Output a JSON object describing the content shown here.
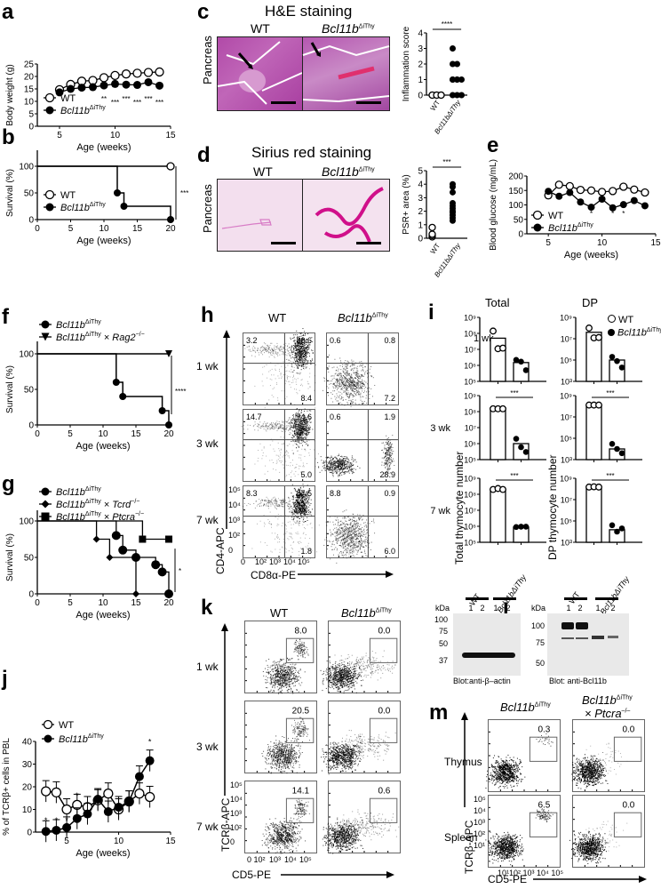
{
  "panels": {
    "a": {
      "label": "a"
    },
    "b": {
      "label": "b"
    },
    "c": {
      "label": "c",
      "title": "H&E staining",
      "col_wt": "WT",
      "col_ko": "Bcl11b",
      "col_ko_sup": "ΔiThy",
      "row_label": "Pancreas"
    },
    "d": {
      "label": "d",
      "title": "Sirius red staining",
      "col_wt": "WT",
      "col_ko": "Bcl11b",
      "col_ko_sup": "ΔiThy",
      "row_label": "Pancreas"
    },
    "e": {
      "label": "e"
    },
    "f": {
      "label": "f"
    },
    "g": {
      "label": "g"
    },
    "h": {
      "label": "h",
      "col_wt": "WT",
      "col_ko": "Bcl11b",
      "col_ko_sup": "ΔiThy",
      "rows": [
        "1 wk",
        "3 wk",
        "7 wk"
      ],
      "ylabel": "CD4-APC",
      "xlabel": "CD8α-PE",
      "quadrants": [
        {
          "wt": [
            "3.2",
            "80.6",
            "8.4"
          ],
          "ko": [
            "0.6",
            "0.8",
            "7.2"
          ]
        },
        {
          "wt": [
            "14.7",
            "74.6",
            "5.0"
          ],
          "ko": [
            "0.6",
            "1.9",
            "28.9"
          ]
        },
        {
          "wt": [
            "8.3",
            "87.5",
            "1.8"
          ],
          "ko": [
            "8.8",
            "0.9",
            "6.0"
          ]
        }
      ],
      "yticks": [
        "0",
        "10²",
        "10³",
        "10⁴",
        "10⁵"
      ],
      "xticks": [
        "0",
        "10²",
        "10³",
        "10⁴",
        "10⁵"
      ]
    },
    "i": {
      "label": "i",
      "col_total": "Total",
      "col_dp": "DP",
      "ylabel_total": "Total thymocyte number",
      "ylabel_dp": "DP thymocyte number",
      "rows": [
        "1 wk",
        "3 wk",
        "7 wk"
      ],
      "legend_wt": "WT",
      "legend_ko": "Bcl11b",
      "legend_ko_sup": "ΔiThy",
      "sig": "***",
      "total_ticks": [
        "10⁹",
        "10⁸",
        "10⁷",
        "10⁶",
        "10⁵"
      ],
      "dp_ticks": [
        "10⁹",
        "10⁷",
        "10⁵",
        "10³"
      ]
    },
    "j": {
      "label": "j"
    },
    "k": {
      "label": "k",
      "col_wt": "WT",
      "col_ko": "Bcl11b",
      "col_ko_sup": "ΔiThy",
      "rows": [
        "1 wk",
        "3 wk",
        "7 wk"
      ],
      "ylabel": "TCRβ-APC",
      "xlabel": "CD5-PE",
      "gates": [
        {
          "wt": "8.0",
          "ko": "0.0"
        },
        {
          "wt": "20.5",
          "ko": "0.0"
        },
        {
          "wt": "14.1",
          "ko": "0.6"
        }
      ],
      "yticks": [
        "0",
        "10²",
        "10³",
        "10⁴",
        "10⁵"
      ],
      "xticks": [
        "0",
        "10²",
        "10³",
        "10⁴",
        "10⁵"
      ]
    },
    "l": {
      "label": "l",
      "kda": "kDa",
      "group_wt": "WT",
      "group_ko": "Bcl11bΔiThy",
      "lanes": [
        "1",
        "2",
        "1",
        "2"
      ],
      "blot1": {
        "caption": "Blot:anti-β–actin",
        "markers": [
          "100",
          "75",
          "50",
          "37"
        ]
      },
      "blot2": {
        "caption": "Blot: anti-Bcl11b",
        "markers": [
          "100",
          "75",
          "50"
        ]
      }
    },
    "m": {
      "label": "m",
      "col1": "Bcl11b",
      "col1_sup": "ΔiThy",
      "col2_line1": "Bcl11b",
      "col2_sup": "ΔiThy",
      "col2_line2": "× Ptcra",
      "col2_line2_sup": "–/–",
      "rows": [
        "Thymus",
        "Spleen"
      ],
      "ylabel": "TCRβ-APC",
      "xlabel": "CD5-PE",
      "gates": [
        {
          "c1": "0.3",
          "c2": "0.0"
        },
        {
          "c1": "6.5",
          "c2": "0.0"
        }
      ],
      "yticks": [
        "10¹",
        "10²",
        "10³",
        "10⁴",
        "10⁵"
      ],
      "xticks": [
        "10¹",
        "10²",
        "10³",
        "10⁴",
        "10⁵"
      ]
    }
  },
  "chart_data": [
    {
      "id": "a",
      "type": "line",
      "title": "",
      "xlabel": "Age (weeks)",
      "ylabel": "Body weight (g)",
      "xlim": [
        3,
        15
      ],
      "ylim": [
        0,
        25
      ],
      "xticks": [
        5,
        10,
        15
      ],
      "yticks": [
        0,
        5,
        10,
        15,
        20,
        25
      ],
      "series": [
        {
          "name": "WT",
          "marker": "open-circle",
          "x": [
            5,
            6,
            7,
            8,
            9,
            10,
            11,
            12,
            13,
            14
          ],
          "values": [
            14.7,
            16.8,
            18.1,
            18.4,
            19.5,
            20.4,
            21.0,
            21.3,
            21.6,
            21.8
          ]
        },
        {
          "name": "Bcl11bΔiThy",
          "marker": "filled-circle",
          "x": [
            5,
            6,
            7,
            8,
            9,
            10,
            11,
            12,
            13,
            14
          ],
          "values": [
            13.6,
            15.0,
            15.5,
            15.7,
            16.4,
            17.0,
            16.7,
            16.6,
            17.7,
            16.3
          ]
        }
      ],
      "annotations": [
        {
          "x": 9,
          "text": "**"
        },
        {
          "x": 10,
          "text": "***"
        },
        {
          "x": 11,
          "text": "***"
        },
        {
          "x": 12,
          "text": "***"
        },
        {
          "x": 13,
          "text": "***"
        },
        {
          "x": 14,
          "text": "***"
        }
      ]
    },
    {
      "id": "b",
      "type": "line",
      "subtype": "kaplan-meier",
      "xlabel": "Age (weeks)",
      "ylabel": "Survival (%)",
      "xlim": [
        0,
        20
      ],
      "ylim": [
        0,
        100
      ],
      "xticks": [
        0,
        5,
        10,
        15,
        20
      ],
      "yticks": [
        0,
        50,
        100
      ],
      "series": [
        {
          "name": "WT",
          "marker": "open-circle",
          "x": [
            0,
            20
          ],
          "values": [
            100,
            100
          ]
        },
        {
          "name": "Bcl11bΔiThy",
          "marker": "filled-circle",
          "x": [
            0,
            12,
            13,
            20
          ],
          "values": [
            100,
            50,
            25,
            0
          ]
        }
      ],
      "annotations": [
        {
          "text": "***"
        }
      ]
    },
    {
      "id": "c-score",
      "type": "scatter",
      "ylabel": "Inflammation score",
      "ylim": [
        0,
        4
      ],
      "yticks": [
        0,
        1,
        2,
        3,
        4
      ],
      "categories": [
        "WT",
        "Bcl11bΔiThy"
      ],
      "series": [
        {
          "name": "WT",
          "values": [
            0,
            0,
            0,
            0,
            0,
            0
          ]
        },
        {
          "name": "Bcl11bΔiThy",
          "values": [
            0,
            0,
            0,
            1,
            1,
            1,
            1,
            1,
            2,
            2,
            3
          ]
        }
      ],
      "annotations": [
        {
          "text": "****"
        }
      ]
    },
    {
      "id": "d-psr",
      "type": "scatter",
      "ylabel": "PSR+ area (%)",
      "ylim": [
        0,
        5
      ],
      "yticks": [
        0,
        1,
        2,
        3,
        4,
        5
      ],
      "categories": [
        "WT",
        "Bcl11bΔiThy"
      ],
      "series": [
        {
          "name": "WT",
          "values": [
            0.1,
            0.2,
            0.3,
            0.8
          ]
        },
        {
          "name": "Bcl11bΔiThy",
          "values": [
            1.3,
            1.5,
            1.7,
            1.9,
            2.0,
            2.2,
            2.4,
            2.6,
            3.4,
            3.8,
            4.0
          ]
        }
      ],
      "annotations": [
        {
          "text": "***"
        }
      ]
    },
    {
      "id": "e",
      "type": "line",
      "xlabel": "Age (weeks)",
      "ylabel": "Blood glucose (mg/mL)",
      "xlim": [
        3,
        15
      ],
      "ylim": [
        0,
        200
      ],
      "xticks": [
        5,
        10,
        15
      ],
      "yticks": [
        0,
        50,
        100,
        150,
        200
      ],
      "series": [
        {
          "name": "WT",
          "marker": "open-circle",
          "x": [
            5,
            6,
            7,
            8,
            9,
            10,
            11,
            12,
            13,
            14
          ],
          "values": [
            133,
            170,
            165,
            152,
            150,
            145,
            148,
            163,
            153,
            143
          ]
        },
        {
          "name": "Bcl11bΔiThy",
          "marker": "filled-circle",
          "x": [
            5,
            6,
            7,
            8,
            9,
            10,
            11,
            12,
            13,
            14
          ],
          "values": [
            147,
            130,
            143,
            110,
            92,
            120,
            90,
            101,
            115,
            97
          ]
        }
      ],
      "annotations": [
        {
          "x": 9,
          "text": "*"
        },
        {
          "x": 11,
          "text": "*"
        },
        {
          "x": 12,
          "text": "*"
        }
      ]
    },
    {
      "id": "f",
      "type": "line",
      "subtype": "kaplan-meier",
      "xlabel": "Age (weeks)",
      "ylabel": "Survival (%)",
      "xlim": [
        0,
        20
      ],
      "ylim": [
        0,
        100
      ],
      "xticks": [
        0,
        5,
        10,
        15,
        20
      ],
      "yticks": [
        0,
        50,
        100
      ],
      "series": [
        {
          "name": "Bcl11bΔiThy",
          "marker": "filled-circle",
          "x": [
            0,
            12,
            13,
            19,
            20
          ],
          "values": [
            100,
            60,
            40,
            20,
            0
          ]
        },
        {
          "name": "Bcl11bΔiThy × Rag2−/−",
          "marker": "filled-triangle-down",
          "x": [
            0,
            20
          ],
          "values": [
            100,
            100
          ]
        }
      ],
      "annotations": [
        {
          "text": "****"
        }
      ]
    },
    {
      "id": "g",
      "type": "line",
      "subtype": "kaplan-meier",
      "xlabel": "Age (weeks)",
      "ylabel": "Survival (%)",
      "xlim": [
        0,
        20
      ],
      "ylim": [
        0,
        100
      ],
      "xticks": [
        0,
        5,
        10,
        15,
        20
      ],
      "yticks": [
        0,
        50,
        100
      ],
      "series": [
        {
          "name": "Bcl11bΔiThy",
          "marker": "filled-circle",
          "x": [
            0,
            12,
            13,
            15,
            18,
            19,
            20
          ],
          "values": [
            100,
            80,
            60,
            50,
            40,
            30,
            0
          ]
        },
        {
          "name": "Bcl11bΔiThy × Tcrd−/−",
          "marker": "filled-diamond",
          "x": [
            0,
            9,
            11,
            15
          ],
          "values": [
            100,
            75,
            50,
            0
          ]
        },
        {
          "name": "Bcl11bΔiThy × Ptcra−/−",
          "marker": "filled-square",
          "x": [
            0,
            16,
            20
          ],
          "values": [
            100,
            75,
            75
          ]
        }
      ],
      "annotations": [
        {
          "text": "*"
        }
      ]
    },
    {
      "id": "i",
      "type": "bar",
      "subtype": "log-scale dot-bar",
      "panels": [
        {
          "row": "1 wk",
          "col": "Total",
          "categories": [
            "WT",
            "Bcl11bΔiThy"
          ],
          "values": [
            50000000.0,
            1500000.0
          ],
          "points": [
            [
              140000000.0,
              11000000.0,
              12000000.0
            ],
            [
              2200000.0,
              1700000.0,
              500000.0
            ]
          ]
        },
        {
          "row": "1 wk",
          "col": "DP",
          "categories": [
            "WT",
            "Bcl11bΔiThy"
          ],
          "values": [
            40000000.0,
            100000.0
          ],
          "points": [
            [
              100000000.0,
              12000000.0,
              13000000.0
            ],
            [
              200000.0,
              80000.0,
              20000.0
            ]
          ]
        },
        {
          "row": "3 wk",
          "col": "Total",
          "categories": [
            "WT",
            "Bcl11bΔiThy"
          ],
          "values": [
            150000000.0,
            1000000.0
          ],
          "points": [
            [
              150000000.0,
              150000000.0,
              150000000.0
            ],
            [
              2000000.0,
              600000.0,
              300000.0
            ]
          ],
          "sig": "***"
        },
        {
          "row": "3 wk",
          "col": "DP",
          "categories": [
            "WT",
            "Bcl11bΔiThy"
          ],
          "values": [
            130000000.0,
            10000.0
          ],
          "points": [
            [
              130000000.0,
              130000000.0,
              130000000.0
            ],
            [
              30000.0,
              10000.0,
              4000.0
            ]
          ],
          "sig": "***"
        },
        {
          "row": "7 wk",
          "col": "Total",
          "categories": [
            "WT",
            "Bcl11bΔiThy"
          ],
          "values": [
            200000000.0,
            900000.0
          ],
          "points": [
            [
              200000000.0,
              230000000.0,
              200000000.0
            ],
            [
              900000.0,
              950000.0,
              950000.0
            ]
          ],
          "sig": "***"
        },
        {
          "row": "7 wk",
          "col": "DP",
          "categories": [
            "WT",
            "Bcl11bΔiThy"
          ],
          "values": [
            150000000.0,
            15000.0
          ],
          "points": [
            [
              150000000.0,
              160000000.0,
              150000000.0
            ],
            [
              40000.0,
              10000.0,
              20000.0
            ]
          ],
          "sig": "***"
        }
      ]
    },
    {
      "id": "j",
      "type": "line",
      "xlabel": "Age (weeks)",
      "ylabel": "% of TCRβ+ cells in PBL",
      "xlim": [
        2,
        15
      ],
      "ylim": [
        0,
        40
      ],
      "xticks": [
        5,
        10,
        15
      ],
      "yticks": [
        0,
        10,
        20,
        30,
        40
      ],
      "series": [
        {
          "name": "WT",
          "marker": "open-circle",
          "x": [
            3,
            4,
            5,
            6,
            7,
            8,
            9,
            10,
            11,
            12,
            13
          ],
          "values": [
            18,
            17.5,
            10,
            12,
            11,
            14,
            17,
            10,
            13.5,
            17,
            15.5
          ]
        },
        {
          "name": "Bcl11bΔiThy",
          "marker": "filled-circle",
          "x": [
            3,
            4,
            5,
            6,
            7,
            8,
            9,
            10,
            11,
            12,
            13
          ],
          "values": [
            0.3,
            0.8,
            2,
            6,
            8,
            14.5,
            9,
            11,
            13.5,
            24.5,
            31.5
          ]
        }
      ],
      "annotations": [
        {
          "x": 3,
          "text": "*"
        },
        {
          "x": 4,
          "text": "*"
        },
        {
          "x": 5,
          "text": "*"
        },
        {
          "x": 6,
          "text": "*"
        },
        {
          "x": 13,
          "text": "*"
        }
      ]
    }
  ]
}
